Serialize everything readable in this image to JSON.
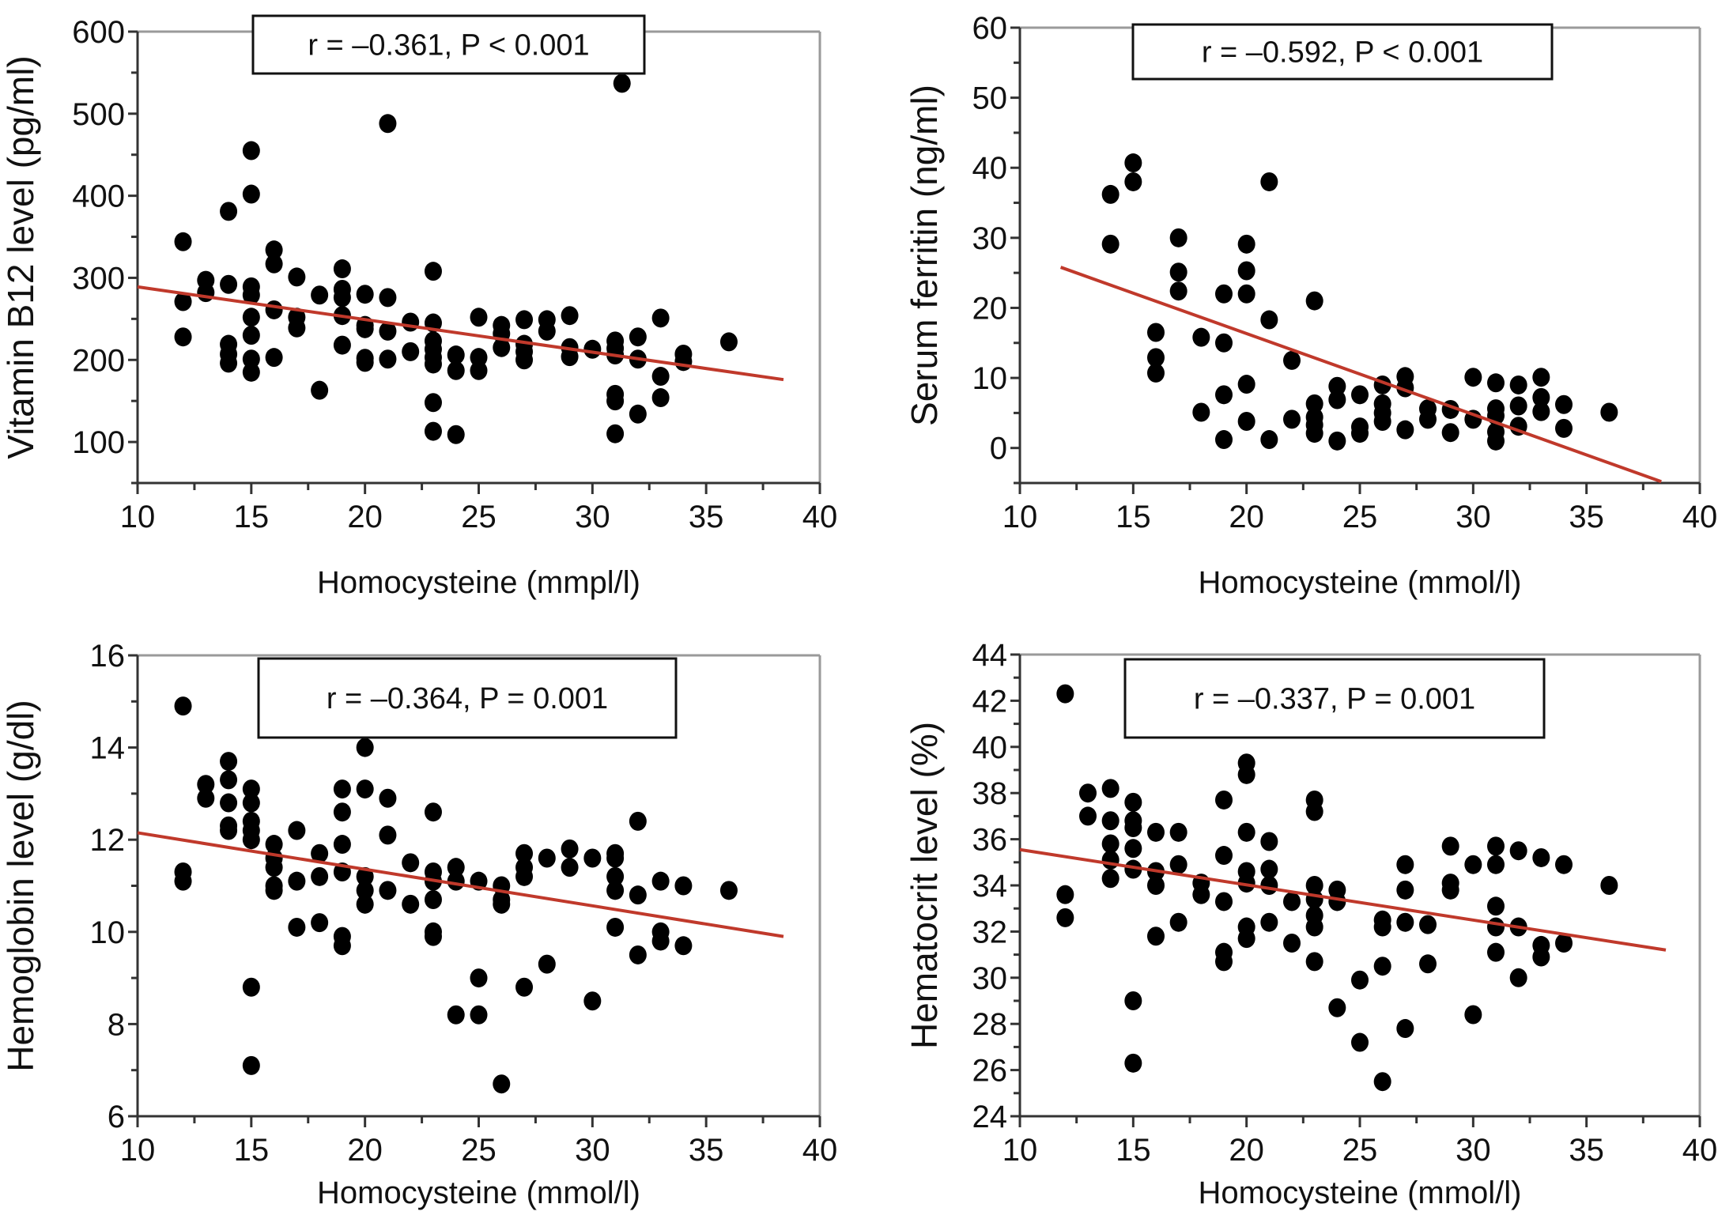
{
  "figure": {
    "point_color": "#000000",
    "fit_line_color": "#c0392b",
    "frame_color": "#9a9a9a",
    "axis_color": "#333333"
  },
  "chart_data": [
    {
      "id": "b12",
      "type": "scatter",
      "title": "",
      "xlabel": "Homocysteine (mmpl/l)",
      "ylabel": "Vitamin B12 level (pg/ml)",
      "annotation": "r = –0.361, P < 0.001",
      "xlim": [
        10,
        40
      ],
      "ylim": [
        50,
        600
      ],
      "xticks": [
        10,
        15,
        20,
        25,
        30,
        35,
        40
      ],
      "yticks": [
        100,
        200,
        300,
        400,
        500,
        600
      ],
      "grid": false,
      "fit_line": [
        [
          10,
          289
        ],
        [
          38.4,
          176
        ]
      ],
      "points": [
        [
          12,
          344
        ],
        [
          12,
          271
        ],
        [
          12,
          228
        ],
        [
          13,
          297
        ],
        [
          13,
          282
        ],
        [
          14,
          381
        ],
        [
          14,
          292
        ],
        [
          14,
          219
        ],
        [
          14,
          207
        ],
        [
          14,
          196
        ],
        [
          15,
          455
        ],
        [
          15,
          402
        ],
        [
          15,
          289
        ],
        [
          15,
          279
        ],
        [
          15,
          252
        ],
        [
          15,
          230
        ],
        [
          15,
          201
        ],
        [
          15,
          185
        ],
        [
          16,
          334
        ],
        [
          16,
          317
        ],
        [
          16,
          261
        ],
        [
          16,
          203
        ],
        [
          17,
          301
        ],
        [
          17,
          252
        ],
        [
          17,
          239
        ],
        [
          18,
          279
        ],
        [
          18,
          163
        ],
        [
          19,
          311
        ],
        [
          19,
          286
        ],
        [
          19,
          276
        ],
        [
          19,
          254
        ],
        [
          19,
          218
        ],
        [
          20,
          280
        ],
        [
          20,
          242
        ],
        [
          20,
          238
        ],
        [
          20,
          202
        ],
        [
          20,
          197
        ],
        [
          21,
          488
        ],
        [
          21,
          276
        ],
        [
          21,
          235
        ],
        [
          21,
          201
        ],
        [
          22,
          246
        ],
        [
          22,
          210
        ],
        [
          23,
          308
        ],
        [
          23,
          245
        ],
        [
          23,
          223
        ],
        [
          23,
          213
        ],
        [
          23,
          203
        ],
        [
          23,
          195
        ],
        [
          23,
          148
        ],
        [
          23,
          113
        ],
        [
          24,
          206
        ],
        [
          24,
          187
        ],
        [
          24,
          109
        ],
        [
          25,
          252
        ],
        [
          25,
          203
        ],
        [
          25,
          187
        ],
        [
          26,
          242
        ],
        [
          26,
          232
        ],
        [
          26,
          215
        ],
        [
          27,
          249
        ],
        [
          27,
          219
        ],
        [
          27,
          210
        ],
        [
          27,
          200
        ],
        [
          28,
          249
        ],
        [
          28,
          235
        ],
        [
          29,
          254
        ],
        [
          29,
          215
        ],
        [
          29,
          204
        ],
        [
          30,
          213
        ],
        [
          31,
          223
        ],
        [
          31,
          214
        ],
        [
          31,
          206
        ],
        [
          31,
          158
        ],
        [
          31,
          150
        ],
        [
          31,
          110
        ],
        [
          31.3,
          537
        ],
        [
          32,
          228
        ],
        [
          32,
          201
        ],
        [
          32,
          134
        ],
        [
          33,
          251
        ],
        [
          33,
          180
        ],
        [
          33,
          154
        ],
        [
          34,
          207
        ],
        [
          34,
          198
        ],
        [
          36,
          222
        ]
      ]
    },
    {
      "id": "ferritin",
      "type": "scatter",
      "title": "",
      "xlabel": "Homocysteine (mmol/l)",
      "ylabel": "Serum ferritin (ng/ml)",
      "annotation": "r = –0.592, P < 0.001",
      "xlim": [
        10,
        40
      ],
      "ylim": [
        -5,
        60
      ],
      "xticks": [
        10,
        15,
        20,
        25,
        30,
        35,
        40
      ],
      "yticks": [
        0,
        10,
        20,
        30,
        40,
        50,
        60
      ],
      "grid": false,
      "fit_line": [
        [
          11.8,
          25.8
        ],
        [
          38.3,
          -4.8
        ]
      ],
      "points": [
        [
          14,
          36.2
        ],
        [
          14,
          29.1
        ],
        [
          15,
          40.7
        ],
        [
          15,
          38.0
        ],
        [
          16,
          16.5
        ],
        [
          16,
          12.9
        ],
        [
          16,
          10.7
        ],
        [
          17,
          30.0
        ],
        [
          17,
          25.1
        ],
        [
          17,
          22.4
        ],
        [
          18,
          15.8
        ],
        [
          18,
          5.1
        ],
        [
          19,
          22.0
        ],
        [
          19,
          15.0
        ],
        [
          19,
          7.6
        ],
        [
          19,
          1.2
        ],
        [
          20,
          29.1
        ],
        [
          20,
          25.3
        ],
        [
          20,
          22.0
        ],
        [
          20,
          9.1
        ],
        [
          20,
          3.8
        ],
        [
          21,
          38.0
        ],
        [
          21,
          18.3
        ],
        [
          21,
          1.2
        ],
        [
          22,
          12.5
        ],
        [
          22,
          4.1
        ],
        [
          23,
          21.0
        ],
        [
          23,
          6.3
        ],
        [
          23,
          4.4
        ],
        [
          23,
          3.3
        ],
        [
          23,
          2.1
        ],
        [
          24,
          8.8
        ],
        [
          24,
          6.9
        ],
        [
          24,
          1.0
        ],
        [
          25,
          7.6
        ],
        [
          25,
          3.0
        ],
        [
          25,
          2.1
        ],
        [
          26,
          9.0
        ],
        [
          26,
          6.3
        ],
        [
          26,
          5.0
        ],
        [
          26,
          3.8
        ],
        [
          27,
          10.2
        ],
        [
          27,
          8.6
        ],
        [
          27,
          2.6
        ],
        [
          28,
          5.6
        ],
        [
          28,
          4.1
        ],
        [
          29,
          5.5
        ],
        [
          29,
          2.2
        ],
        [
          30,
          10.1
        ],
        [
          30,
          4.1
        ],
        [
          31,
          9.3
        ],
        [
          31,
          5.6
        ],
        [
          31,
          4.6
        ],
        [
          31,
          2.3
        ],
        [
          31,
          1.0
        ],
        [
          32,
          9.0
        ],
        [
          32,
          6.0
        ],
        [
          32,
          3.1
        ],
        [
          33,
          10.1
        ],
        [
          33,
          7.2
        ],
        [
          33,
          5.2
        ],
        [
          34,
          6.2
        ],
        [
          34,
          2.8
        ],
        [
          36,
          5.1
        ]
      ]
    },
    {
      "id": "hemoglobin",
      "type": "scatter",
      "title": "",
      "xlabel": "Homocysteine (mmol/l)",
      "ylabel": "Hemoglobin level (g/dl)",
      "annotation": "r = –0.364, P = 0.001",
      "xlim": [
        10,
        40
      ],
      "ylim": [
        6,
        16
      ],
      "xticks": [
        10,
        15,
        20,
        25,
        30,
        35,
        40
      ],
      "yticks": [
        6,
        8,
        10,
        12,
        14,
        16
      ],
      "grid": false,
      "fit_line": [
        [
          10,
          12.15
        ],
        [
          38.4,
          9.9
        ]
      ],
      "points": [
        [
          12,
          14.9
        ],
        [
          12,
          11.3
        ],
        [
          12,
          11.1
        ],
        [
          13,
          13.2
        ],
        [
          13,
          12.9
        ],
        [
          14,
          13.7
        ],
        [
          14,
          13.3
        ],
        [
          14,
          12.8
        ],
        [
          14,
          12.3
        ],
        [
          14,
          12.2
        ],
        [
          15,
          13.1
        ],
        [
          15,
          12.8
        ],
        [
          15,
          12.4
        ],
        [
          15,
          12.2
        ],
        [
          15,
          12.0
        ],
        [
          15,
          8.8
        ],
        [
          15,
          7.1
        ],
        [
          16,
          11.9
        ],
        [
          16,
          11.6
        ],
        [
          16,
          11.4
        ],
        [
          16,
          11.0
        ],
        [
          16,
          10.9
        ],
        [
          17,
          12.2
        ],
        [
          17,
          11.1
        ],
        [
          17,
          10.1
        ],
        [
          18,
          11.7
        ],
        [
          18,
          11.2
        ],
        [
          18,
          10.2
        ],
        [
          19,
          13.1
        ],
        [
          19,
          12.6
        ],
        [
          19,
          11.9
        ],
        [
          19,
          11.3
        ],
        [
          19,
          9.9
        ],
        [
          19,
          9.7
        ],
        [
          20,
          14.0
        ],
        [
          20,
          13.1
        ],
        [
          20,
          11.2
        ],
        [
          20,
          10.9
        ],
        [
          20,
          10.6
        ],
        [
          21,
          12.9
        ],
        [
          21,
          12.1
        ],
        [
          21,
          10.9
        ],
        [
          22,
          11.5
        ],
        [
          22,
          10.6
        ],
        [
          23,
          12.6
        ],
        [
          23,
          11.3
        ],
        [
          23,
          11.1
        ],
        [
          23,
          10.7
        ],
        [
          23,
          10.0
        ],
        [
          23,
          9.9
        ],
        [
          24,
          11.4
        ],
        [
          24,
          11.1
        ],
        [
          24,
          8.2
        ],
        [
          25,
          11.1
        ],
        [
          25,
          9.0
        ],
        [
          25,
          8.2
        ],
        [
          26,
          11.0
        ],
        [
          26,
          10.7
        ],
        [
          26,
          10.6
        ],
        [
          26,
          6.7
        ],
        [
          27,
          11.7
        ],
        [
          27,
          11.4
        ],
        [
          27,
          11.2
        ],
        [
          27,
          8.8
        ],
        [
          28,
          11.6
        ],
        [
          28,
          9.3
        ],
        [
          29,
          11.8
        ],
        [
          29,
          11.4
        ],
        [
          30,
          11.6
        ],
        [
          30,
          8.5
        ],
        [
          31,
          11.7
        ],
        [
          31,
          11.6
        ],
        [
          31,
          11.2
        ],
        [
          31,
          10.9
        ],
        [
          31,
          10.1
        ],
        [
          32,
          12.4
        ],
        [
          32,
          10.8
        ],
        [
          32,
          9.5
        ],
        [
          33,
          11.1
        ],
        [
          33,
          10.0
        ],
        [
          33,
          9.8
        ],
        [
          34,
          11.0
        ],
        [
          34,
          9.7
        ],
        [
          36,
          10.9
        ]
      ]
    },
    {
      "id": "hematocrit",
      "type": "scatter",
      "title": "",
      "xlabel": "Homocysteine (mmol/l)",
      "ylabel": "Hematocrit level (%)",
      "annotation": "r = –0.337, P = 0.001",
      "xlim": [
        10,
        40
      ],
      "ylim": [
        24,
        44
      ],
      "xticks": [
        10,
        15,
        20,
        25,
        30,
        35,
        40
      ],
      "yticks": [
        24,
        26,
        28,
        30,
        32,
        34,
        36,
        38,
        40,
        42,
        44
      ],
      "grid": false,
      "fit_line": [
        [
          10,
          35.55
        ],
        [
          38.5,
          31.2
        ]
      ],
      "points": [
        [
          12,
          42.3
        ],
        [
          12,
          33.6
        ],
        [
          12,
          32.6
        ],
        [
          13,
          38.0
        ],
        [
          13,
          37.0
        ],
        [
          14,
          38.2
        ],
        [
          14,
          36.8
        ],
        [
          14,
          35.8
        ],
        [
          14,
          35.1
        ],
        [
          14,
          34.3
        ],
        [
          15,
          37.6
        ],
        [
          15,
          36.8
        ],
        [
          15,
          36.5
        ],
        [
          15,
          35.6
        ],
        [
          15,
          34.7
        ],
        [
          15,
          29.0
        ],
        [
          15,
          26.3
        ],
        [
          16,
          36.3
        ],
        [
          16,
          34.6
        ],
        [
          16,
          34.0
        ],
        [
          16,
          31.8
        ],
        [
          17,
          36.3
        ],
        [
          17,
          34.9
        ],
        [
          17,
          32.4
        ],
        [
          18,
          34.1
        ],
        [
          18,
          33.6
        ],
        [
          19,
          37.7
        ],
        [
          19,
          35.3
        ],
        [
          19,
          33.3
        ],
        [
          19,
          31.1
        ],
        [
          19,
          30.7
        ],
        [
          20,
          39.3
        ],
        [
          20,
          38.8
        ],
        [
          20,
          36.3
        ],
        [
          20,
          34.6
        ],
        [
          20,
          34.1
        ],
        [
          20,
          32.2
        ],
        [
          20,
          31.7
        ],
        [
          21,
          35.9
        ],
        [
          21,
          34.7
        ],
        [
          21,
          34.0
        ],
        [
          21,
          32.4
        ],
        [
          22,
          33.3
        ],
        [
          22,
          31.5
        ],
        [
          23,
          37.7
        ],
        [
          23,
          37.2
        ],
        [
          23,
          34.0
        ],
        [
          23,
          33.4
        ],
        [
          23,
          32.7
        ],
        [
          23,
          32.2
        ],
        [
          23,
          30.7
        ],
        [
          24,
          33.8
        ],
        [
          24,
          33.3
        ],
        [
          24,
          28.7
        ],
        [
          25,
          29.9
        ],
        [
          25,
          27.2
        ],
        [
          26,
          32.5
        ],
        [
          26,
          32.2
        ],
        [
          26,
          30.5
        ],
        [
          26,
          25.5
        ],
        [
          27,
          34.9
        ],
        [
          27,
          33.8
        ],
        [
          27,
          32.4
        ],
        [
          27,
          27.8
        ],
        [
          28,
          32.3
        ],
        [
          28,
          30.6
        ],
        [
          29,
          35.7
        ],
        [
          29,
          34.1
        ],
        [
          29,
          33.8
        ],
        [
          30,
          34.9
        ],
        [
          30,
          28.4
        ],
        [
          31,
          35.7
        ],
        [
          31,
          34.9
        ],
        [
          31,
          33.1
        ],
        [
          31,
          32.2
        ],
        [
          31,
          31.1
        ],
        [
          32,
          35.5
        ],
        [
          32,
          32.2
        ],
        [
          32,
          30.0
        ],
        [
          33,
          35.2
        ],
        [
          33,
          31.4
        ],
        [
          33,
          30.9
        ],
        [
          34,
          34.9
        ],
        [
          34,
          31.5
        ],
        [
          36,
          34.0
        ]
      ]
    }
  ]
}
